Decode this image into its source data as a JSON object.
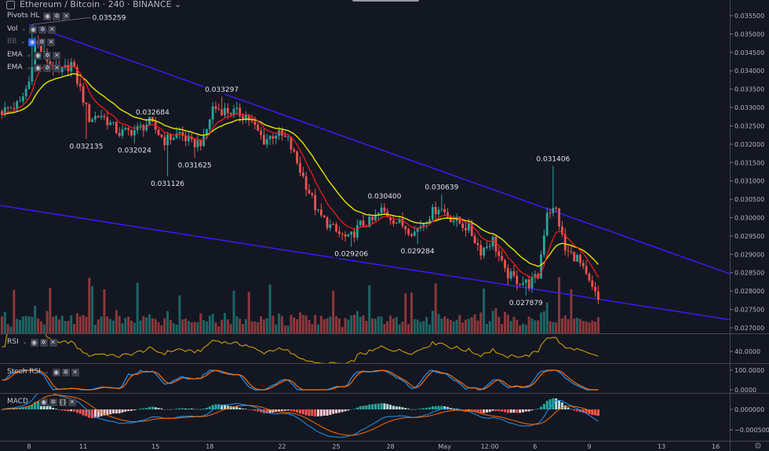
{
  "header": {
    "title": "Ethereum / Bitcoin · 240 · BINANCE",
    "indicators": [
      {
        "name": "Pivots HL",
        "enabled": true
      },
      {
        "name": "Vol",
        "enabled": true
      },
      {
        "name": "BB",
        "enabled": false
      },
      {
        "name": "EMA",
        "enabled": true
      },
      {
        "name": "EMA",
        "enabled": true
      }
    ]
  },
  "icons": {
    "visibility": "eye-icon",
    "settings": "gear-icon",
    "remove": "close-icon",
    "source": "code-icon"
  },
  "colors": {
    "background": "#131722",
    "up": "#26a69a",
    "down": "#ef5350",
    "ema_fast": "#ff1a1a",
    "ema_slow": "#e6e600",
    "trendline": "#3c1cff",
    "rsi": "#e0a800",
    "stoch_k": "#2196f3",
    "stoch_d": "#ff6d00",
    "macd": "#2196f3",
    "signal": "#ff6d00"
  },
  "chart_data": {
    "type": "candlestick",
    "symbol": "Ethereum / Bitcoin",
    "interval": "240",
    "exchange": "BINANCE",
    "ylim": [
      0.027,
      0.0358
    ],
    "y_ticks": [
      "0.035500",
      "0.035000",
      "0.034500",
      "0.034000",
      "0.033500",
      "0.033000",
      "0.032500",
      "0.032000",
      "0.031500",
      "0.031000",
      "0.030500",
      "0.030000",
      "0.029500",
      "0.029000",
      "0.028500",
      "0.028000",
      "0.027500",
      "0.027000"
    ],
    "x_ticks": [
      {
        "label": "8",
        "date": "2019-04-08T00:00"
      },
      {
        "label": "11",
        "date": "2019-04-11T00:00"
      },
      {
        "label": "15",
        "date": "2019-04-15T00:00"
      },
      {
        "label": "18",
        "date": "2019-04-18T00:00"
      },
      {
        "label": "22",
        "date": "2019-04-22T00:00"
      },
      {
        "label": "25",
        "date": "2019-04-25T00:00"
      },
      {
        "label": "28",
        "date": "2019-04-28T00:00"
      },
      {
        "label": "May",
        "date": "2019-05-01T00:00"
      },
      {
        "label": "12:00",
        "date": "2019-05-03T12:00"
      },
      {
        "label": "6",
        "date": "2019-05-06T00:00"
      },
      {
        "label": "9",
        "date": "2019-05-09T00:00"
      },
      {
        "label": "13",
        "date": "2019-05-13T00:00"
      },
      {
        "label": "16",
        "date": "2019-05-16T00:00"
      }
    ],
    "close_path": [
      [
        "2019-04-06T12:00",
        0.0329
      ],
      [
        "2019-04-07T12:00",
        0.0331
      ],
      [
        "2019-04-08T00:00",
        0.0337
      ],
      [
        "2019-04-08T08:00",
        0.0348
      ],
      [
        "2019-04-09T00:00",
        0.0343
      ],
      [
        "2019-04-09T16:00",
        0.0339
      ],
      [
        "2019-04-10T08:00",
        0.0342
      ],
      [
        "2019-04-10T20:00",
        0.0335
      ],
      [
        "2019-04-11T08:00",
        0.0327
      ],
      [
        "2019-04-12T00:00",
        0.0328
      ],
      [
        "2019-04-13T00:00",
        0.0323
      ],
      [
        "2019-04-14T00:00",
        0.0324
      ],
      [
        "2019-04-14T16:00",
        0.0326
      ],
      [
        "2019-04-15T12:00",
        0.0321
      ],
      [
        "2019-04-16T08:00",
        0.0323
      ],
      [
        "2019-04-17T00:00",
        0.032
      ],
      [
        "2019-04-17T16:00",
        0.0321
      ],
      [
        "2019-04-18T04:00",
        0.033
      ],
      [
        "2019-04-19T00:00",
        0.0329
      ],
      [
        "2019-04-20T00:00",
        0.0328
      ],
      [
        "2019-04-21T00:00",
        0.0321
      ],
      [
        "2019-04-21T16:00",
        0.0323
      ],
      [
        "2019-04-22T08:00",
        0.0321
      ],
      [
        "2019-04-23T00:00",
        0.0313
      ],
      [
        "2019-04-24T00:00",
        0.0301
      ],
      [
        "2019-04-25T00:00",
        0.0296
      ],
      [
        "2019-04-25T16:00",
        0.0294
      ],
      [
        "2019-04-26T08:00",
        0.0298
      ],
      [
        "2019-04-27T00:00",
        0.0299
      ],
      [
        "2019-04-27T12:00",
        0.0302
      ],
      [
        "2019-04-28T08:00",
        0.0299
      ],
      [
        "2019-04-29T08:00",
        0.0296
      ],
      [
        "2019-04-30T00:00",
        0.03
      ],
      [
        "2019-04-30T16:00",
        0.0303
      ],
      [
        "2019-05-01T08:00",
        0.03
      ],
      [
        "2019-05-02T08:00",
        0.0297
      ],
      [
        "2019-05-03T00:00",
        0.0291
      ],
      [
        "2019-05-03T16:00",
        0.0294
      ],
      [
        "2019-05-04T08:00",
        0.0285
      ],
      [
        "2019-05-05T00:00",
        0.0283
      ],
      [
        "2019-05-05T16:00",
        0.0282
      ],
      [
        "2019-05-06T04:00",
        0.0284
      ],
      [
        "2019-05-06T16:00",
        0.0302
      ],
      [
        "2019-05-07T04:00",
        0.0302
      ],
      [
        "2019-05-07T16:00",
        0.0291
      ],
      [
        "2019-05-08T08:00",
        0.0289
      ],
      [
        "2019-05-09T00:00",
        0.0282
      ],
      [
        "2019-05-09T12:00",
        0.02775
      ]
    ],
    "pivot_labels": [
      {
        "text": "0.035259",
        "date": "2019-04-08T04:00",
        "price": 0.035259,
        "kind": "high"
      },
      {
        "text": "0.032135",
        "date": "2019-04-11T04:00",
        "price": 0.032135,
        "kind": "low"
      },
      {
        "text": "0.032024",
        "date": "2019-04-13T20:00",
        "price": 0.032024,
        "kind": "low"
      },
      {
        "text": "0.032684",
        "date": "2019-04-14T20:00",
        "price": 0.032684,
        "kind": "high"
      },
      {
        "text": "0.031126",
        "date": "2019-04-15T16:00",
        "price": 0.031126,
        "kind": "low"
      },
      {
        "text": "0.031625",
        "date": "2019-04-17T04:00",
        "price": 0.031625,
        "kind": "low"
      },
      {
        "text": "0.033297",
        "date": "2019-04-18T16:00",
        "price": 0.033297,
        "kind": "high"
      },
      {
        "text": "0.029206",
        "date": "2019-04-25T20:00",
        "price": 0.029206,
        "kind": "low"
      },
      {
        "text": "0.030400",
        "date": "2019-04-27T16:00",
        "price": 0.0304,
        "kind": "high"
      },
      {
        "text": "0.029284",
        "date": "2019-04-29T12:00",
        "price": 0.029284,
        "kind": "low"
      },
      {
        "text": "0.030639",
        "date": "2019-04-30T20:00",
        "price": 0.030639,
        "kind": "high"
      },
      {
        "text": "0.027879",
        "date": "2019-05-05T12:00",
        "price": 0.027879,
        "kind": "low"
      },
      {
        "text": "0.031406",
        "date": "2019-05-07T00:00",
        "price": 0.031406,
        "kind": "high"
      }
    ],
    "trendlines": [
      {
        "from": [
          "2019-04-08T00:00",
          0.03526
        ],
        "to": [
          "2019-05-16T08:00",
          0.02855
        ]
      },
      {
        "from": [
          "2019-04-06T10:00",
          0.03033
        ],
        "to": [
          "2019-05-16T16:00",
          0.02723
        ]
      }
    ],
    "panes": [
      {
        "name": "RSI",
        "ticks": [
          "40.0000"
        ]
      },
      {
        "name": "Stoch RSI",
        "ticks": [
          "100.0000",
          "0.0000"
        ]
      },
      {
        "name": "MACD",
        "ticks": [
          "0.000000",
          "−0.000500"
        ]
      }
    ]
  }
}
